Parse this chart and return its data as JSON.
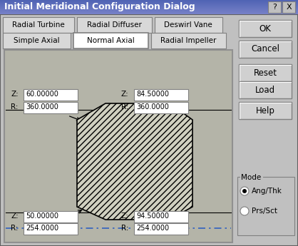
{
  "title": "Initial Meridional Configuration Dialog",
  "bg_color": "#c0c0c0",
  "titlebar_color": "#6080c8",
  "tabs_row1": [
    "Radial Turbine",
    "Radial Diffuser",
    "Deswirl Vane"
  ],
  "tabs_row2": [
    "Simple Axial",
    "Normal Axial",
    "Radial Impeller"
  ],
  "active_tab": "Normal Axial",
  "buttons": [
    "OK",
    "Cancel",
    "Reset",
    "Load",
    "Help"
  ],
  "top_left_z": "60.00000",
  "top_left_r": "360.0000",
  "top_right_z": "84.50000",
  "top_right_r": "360.0000",
  "bot_left_z": "50.00000",
  "bot_left_r": "254.0000",
  "bot_right_z": "94.50000",
  "bot_right_r": "254.0000",
  "mode_label": "Mode",
  "mode_options": [
    "Ang/Thk",
    "Prs/Sct"
  ],
  "mode_selected": 0,
  "shape_face_color": "#d0d0c0",
  "canvas_bg": "#b4b4a8"
}
